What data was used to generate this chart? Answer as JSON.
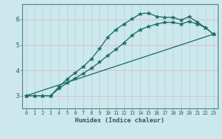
{
  "title": "",
  "xlabel": "Humidex (Indice chaleur)",
  "ylabel": "",
  "bg_color": "#cce8ec",
  "grid_color_h": "#e8b8b8",
  "grid_color_v": "#b8d8dc",
  "line_color": "#1a6e64",
  "axis_color": "#4a7a7a",
  "xlim": [
    -0.5,
    23.5
  ],
  "ylim": [
    2.5,
    6.6
  ],
  "yticks": [
    3,
    4,
    5,
    6
  ],
  "xticks": [
    0,
    1,
    2,
    3,
    4,
    5,
    6,
    7,
    8,
    9,
    10,
    11,
    12,
    13,
    14,
    15,
    16,
    17,
    18,
    19,
    20,
    21,
    22,
    23
  ],
  "curve1_x": [
    0,
    1,
    2,
    3,
    4,
    5,
    6,
    7,
    8,
    9,
    10,
    11,
    12,
    13,
    14,
    15,
    16,
    17,
    18,
    19,
    20,
    21,
    22,
    23
  ],
  "curve1_y": [
    3.0,
    3.0,
    3.0,
    3.0,
    3.35,
    3.65,
    3.9,
    4.15,
    4.45,
    4.85,
    5.3,
    5.6,
    5.82,
    6.02,
    6.22,
    6.25,
    6.12,
    6.08,
    6.08,
    5.98,
    6.1,
    5.9,
    5.68,
    5.42
  ],
  "curve2_x": [
    0,
    1,
    2,
    3,
    4,
    5,
    6,
    7,
    8,
    9,
    10,
    11,
    12,
    13,
    14,
    15,
    16,
    17,
    18,
    19,
    20,
    21,
    22,
    23
  ],
  "curve2_y": [
    3.0,
    3.0,
    3.0,
    3.0,
    3.28,
    3.5,
    3.68,
    3.88,
    4.08,
    4.32,
    4.58,
    4.82,
    5.08,
    5.38,
    5.6,
    5.72,
    5.82,
    5.88,
    5.88,
    5.82,
    5.92,
    5.82,
    5.68,
    5.42
  ],
  "curve3_x": [
    0,
    23
  ],
  "curve3_y": [
    3.0,
    5.42
  ],
  "marker": "*",
  "markersize": 4,
  "linewidth": 1.0
}
